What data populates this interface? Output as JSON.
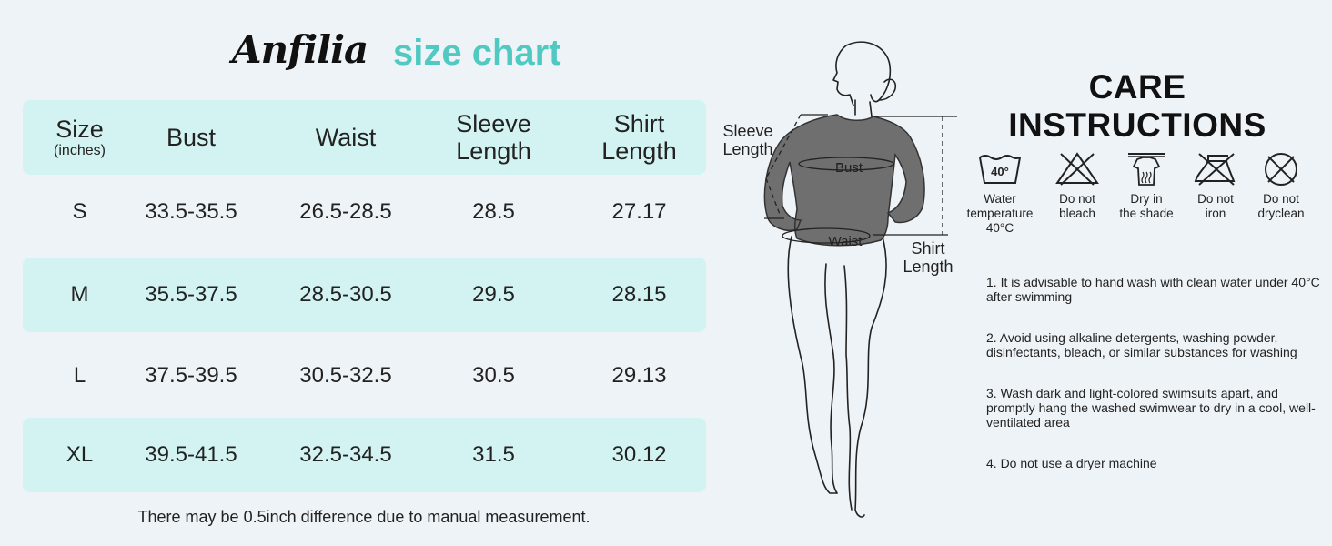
{
  "header": {
    "brand": "Anfilia",
    "subtitle": "size chart"
  },
  "table": {
    "headers": {
      "size": "Size",
      "size_unit": "(inches)",
      "bust": "Bust",
      "waist": "Waist",
      "sleeve_1": "Sleeve",
      "sleeve_2": "Length",
      "shirt_1": "Shirt",
      "shirt_2": "Length"
    },
    "rows": [
      {
        "size": "S",
        "bust": "33.5-35.5",
        "waist": "26.5-28.5",
        "sleeve": "28.5",
        "shirt": "27.17"
      },
      {
        "size": "M",
        "bust": "35.5-37.5",
        "waist": "28.5-30.5",
        "sleeve": "29.5",
        "shirt": "28.15"
      },
      {
        "size": "L",
        "bust": "37.5-39.5",
        "waist": "30.5-32.5",
        "sleeve": "30.5",
        "shirt": "29.13"
      },
      {
        "size": "XL",
        "bust": "39.5-41.5",
        "waist": "32.5-34.5",
        "sleeve": "31.5",
        "shirt": "30.12"
      }
    ],
    "footnote": "There may be 0.5inch difference due to manual measurement."
  },
  "figure": {
    "sleeve_label_1": "Sleeve",
    "sleeve_label_2": "Length",
    "bust_label": "Bust",
    "waist_label": "Waist",
    "shirt_label_1": "Shirt",
    "shirt_label_2": "Length"
  },
  "care": {
    "title": "CARE INSTRUCTIONS",
    "icons": [
      {
        "icon": "wash-40-icon",
        "temp": "40°",
        "label_1": "Water",
        "label_2": "temperature",
        "label_3": "40°C"
      },
      {
        "icon": "no-bleach-icon",
        "label_1": "Do not",
        "label_2": "bleach"
      },
      {
        "icon": "dry-in-shade-icon",
        "label_1": "Dry in",
        "label_2": "the shade"
      },
      {
        "icon": "do-not-iron-icon",
        "label_1": "Do not",
        "label_2": "iron"
      },
      {
        "icon": "do-not-dryclean-icon",
        "label_1": "Do not",
        "label_2": "dryclean"
      }
    ],
    "notes": [
      "1. It is advisable to hand wash with clean water under 40°C after swimming",
      "2. Avoid using alkaline detergents, washing powder, disinfectants, bleach, or similar substances for washing",
      "3. Wash dark and light-colored swimsuits apart, and promptly hang the washed swimwear to dry in a cool, well-ventilated area",
      "4. Do not use a dryer machine"
    ]
  }
}
